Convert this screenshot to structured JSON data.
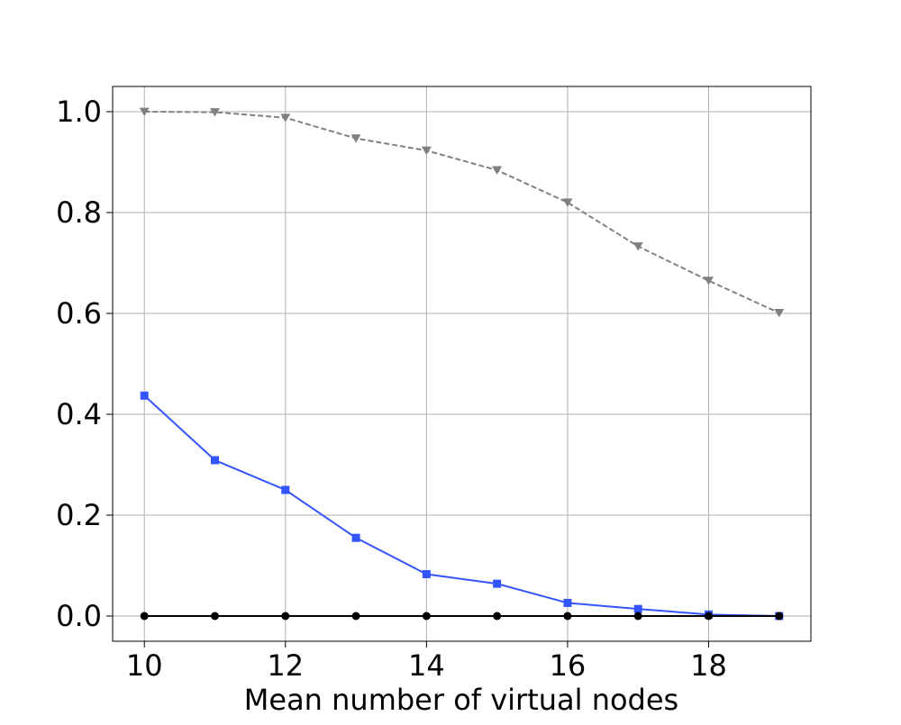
{
  "chart_data": {
    "type": "line",
    "title": "",
    "xlabel": "Mean number of virtual nodes",
    "ylabel": "",
    "xlim": [
      9.55,
      19.45
    ],
    "ylim": [
      -0.05,
      1.05
    ],
    "xticks": [
      10,
      12,
      14,
      16,
      18
    ],
    "xtick_labels": [
      "10",
      "12",
      "14",
      "16",
      "18"
    ],
    "yticks": [
      0.0,
      0.2,
      0.4,
      0.6,
      0.8,
      1.0
    ],
    "ytick_labels": [
      "0.0",
      "0.2",
      "0.4",
      "0.6",
      "0.8",
      "1.0"
    ],
    "grid": true,
    "x": [
      10,
      11,
      12,
      13,
      14,
      15,
      16,
      17,
      18,
      19
    ],
    "series": [
      {
        "color": "#808080",
        "line_style": "dashed",
        "marker": "triangle-down",
        "values": [
          1.0,
          0.999,
          0.988,
          0.947,
          0.923,
          0.884,
          0.82,
          0.733,
          0.665,
          0.601
        ]
      },
      {
        "color": "#3355ff",
        "line_style": "solid",
        "marker": "square",
        "values": [
          0.437,
          0.309,
          0.25,
          0.155,
          0.083,
          0.064,
          0.026,
          0.014,
          0.003,
          0.0
        ]
      },
      {
        "color": "#000000",
        "line_style": "solid",
        "marker": "circle",
        "values": [
          0.0,
          0.0,
          0.0,
          0.0,
          0.0,
          0.0,
          0.0,
          0.0,
          0.0,
          0.0
        ]
      }
    ]
  }
}
